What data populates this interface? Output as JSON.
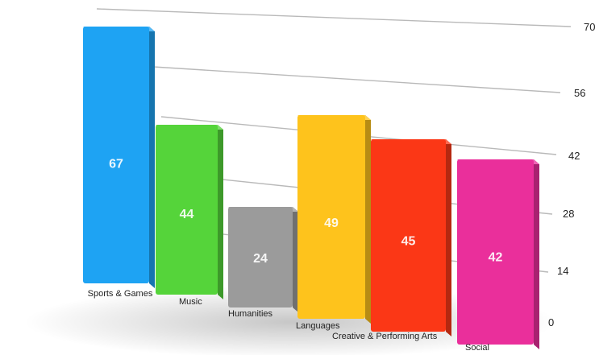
{
  "chart_data": {
    "type": "bar",
    "categories": [
      "Sports & Games",
      "Music",
      "Humanities",
      "Languages",
      "Creative & Performing Arts",
      "Social"
    ],
    "values": [
      67,
      44,
      24,
      49,
      45,
      42
    ],
    "colors": [
      "#1ea3f3",
      "#55d43a",
      "#9b9b9b",
      "#fec31c",
      "#fb3716",
      "#ea2f9b"
    ],
    "yticks": [
      "70",
      "56",
      "42",
      "28",
      "14",
      "0"
    ],
    "ylim": [
      0,
      70
    ],
    "grid": true,
    "style": "3d-perspective"
  }
}
